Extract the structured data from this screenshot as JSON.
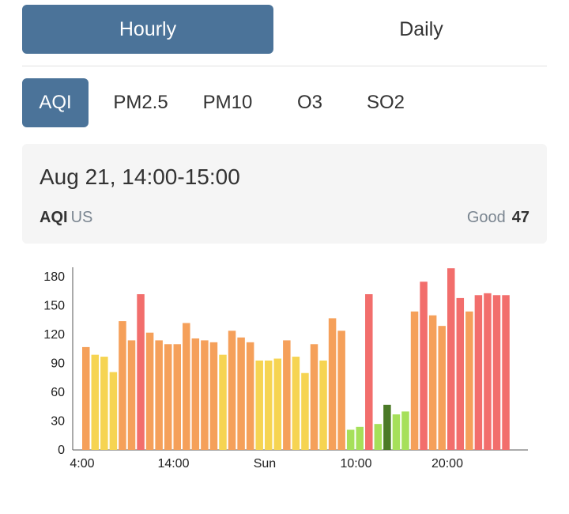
{
  "period_tabs": {
    "hourly": "Hourly",
    "daily": "Daily",
    "selected": "hourly"
  },
  "metric_tabs": {
    "items": [
      "AQI",
      "PM2.5",
      "PM10",
      "O3",
      "SO2"
    ],
    "selected": "AQI"
  },
  "info": {
    "date_range": "Aug 21, 14:00-15:00",
    "metric": "AQI",
    "unit": "US",
    "level": "Good",
    "value": "47"
  },
  "colors": {
    "accent": "#4b7399",
    "good": "#4b7a27",
    "moderate_low": "#a6e05a",
    "moderate": "#f6d452",
    "unhealthy_sensitive": "#f5a05a",
    "unhealthy": "#f26e6c"
  },
  "chart_data": {
    "type": "bar",
    "ylim": [
      0,
      190
    ],
    "yticks": [
      0,
      30,
      60,
      90,
      120,
      150,
      180
    ],
    "xtick_labels": [
      {
        "label": "4:00",
        "index": -0.5
      },
      {
        "label": "14:00",
        "index": 9.5
      },
      {
        "label": "Sun",
        "index": 19.5
      },
      {
        "label": "10:00",
        "index": 29.5
      },
      {
        "label": "20:00",
        "index": 39.5
      }
    ],
    "values": [
      107,
      99,
      97,
      81,
      134,
      114,
      162,
      122,
      114,
      110,
      110,
      132,
      116,
      114,
      112,
      99,
      124,
      117,
      112,
      93,
      93,
      95,
      114,
      97,
      80,
      110,
      93,
      137,
      124,
      21,
      24,
      162,
      27,
      47,
      37,
      40,
      144,
      175,
      140,
      129,
      189,
      158,
      144,
      161,
      163,
      161,
      161
    ],
    "grid": false
  }
}
